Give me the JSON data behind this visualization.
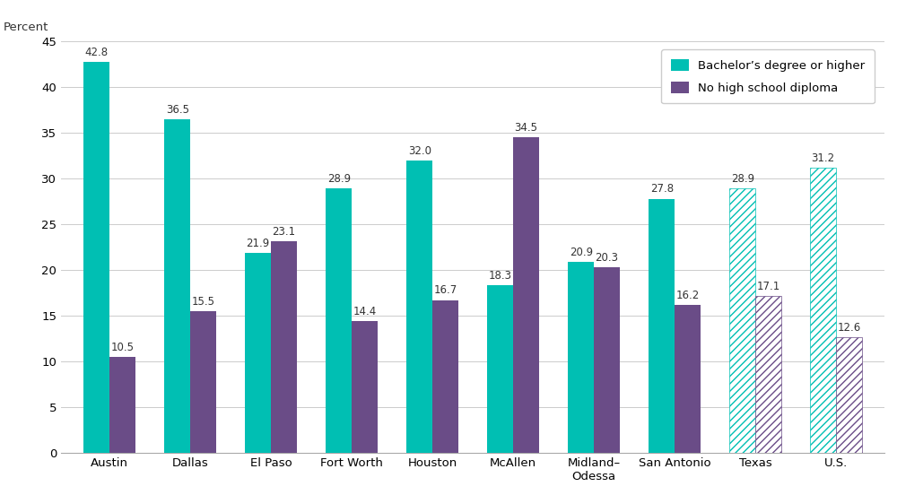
{
  "categories": [
    "Austin",
    "Dallas",
    "El Paso",
    "Fort Worth",
    "Houston",
    "McAllen",
    "Midland–\nOdessa",
    "San Antonio",
    "Texas",
    "U.S."
  ],
  "bachelor": [
    42.8,
    36.5,
    21.9,
    28.9,
    32.0,
    18.3,
    20.9,
    27.8,
    28.9,
    31.2
  ],
  "no_diploma": [
    10.5,
    15.5,
    23.1,
    14.4,
    16.7,
    34.5,
    20.3,
    16.2,
    17.1,
    12.6
  ],
  "bachelor_color": "#00BFB3",
  "no_diploma_color": "#6A4C87",
  "bachelor_label": "Bachelor’s degree or higher",
  "no_diploma_label": "No high school diploma",
  "ylabel": "Percent",
  "ylim": [
    0,
    45
  ],
  "yticks": [
    0,
    5,
    10,
    15,
    20,
    25,
    30,
    35,
    40,
    45
  ],
  "hatch_indices": [
    8,
    9
  ],
  "bar_width": 0.32,
  "background_color": "#ffffff"
}
